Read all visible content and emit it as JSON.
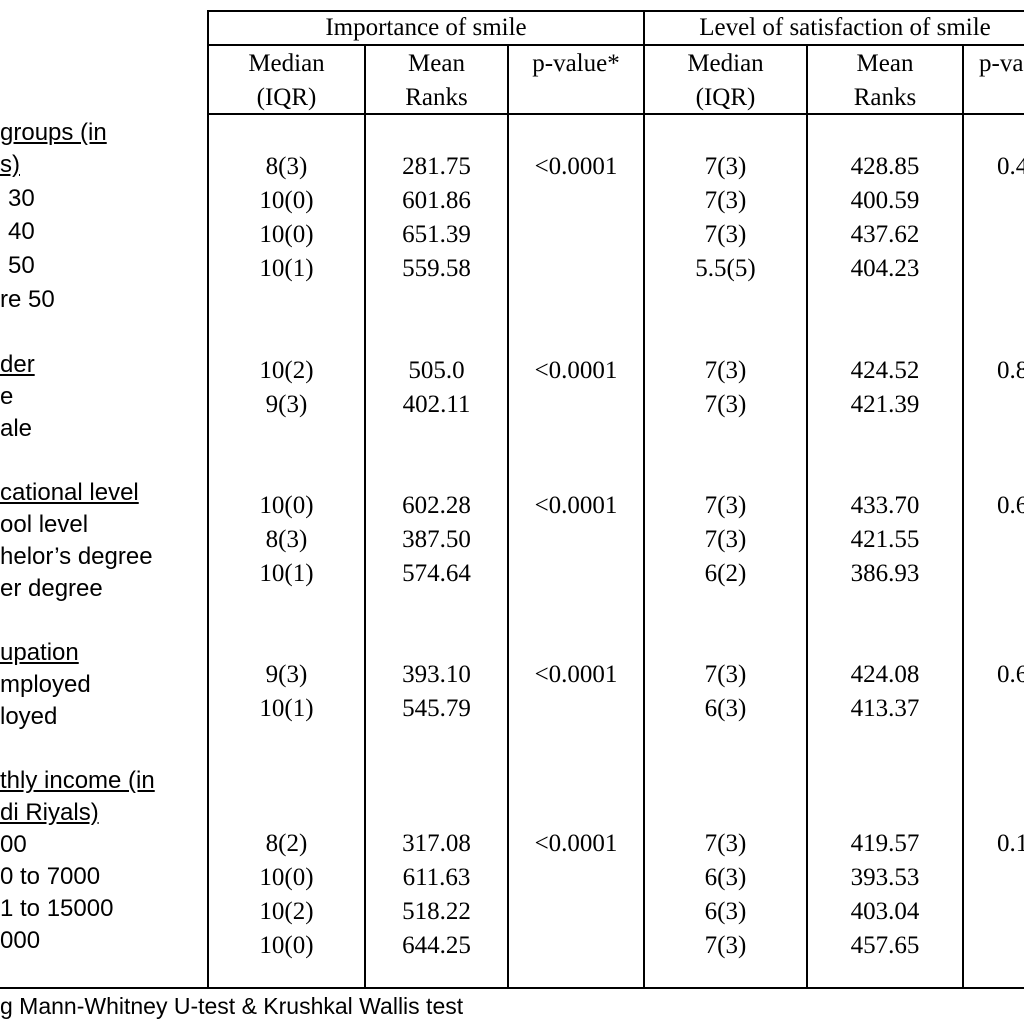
{
  "header": {
    "group1_title": "Importance of smile",
    "group2_title": "Level of satisfaction of smile",
    "col_median_l1": "Median",
    "col_median_l2": "(IQR)",
    "col_mean_l1": "Mean",
    "col_mean_l2": "Ranks",
    "col_p1": "p-value*",
    "col_p2": "p-va"
  },
  "sections": [
    {
      "title_lines": [
        "groups (in",
        "s)"
      ],
      "rows": [
        {
          "label": "30",
          "imp_median": "8(3)",
          "imp_mean": "281.75",
          "imp_p": "<0.0001",
          "sat_median": "7(3)",
          "sat_mean": "428.85",
          "sat_p": "0.4"
        },
        {
          "label": "40",
          "imp_median": "10(0)",
          "imp_mean": "601.86",
          "imp_p": "",
          "sat_median": "7(3)",
          "sat_mean": "400.59",
          "sat_p": ""
        },
        {
          "label": "50",
          "imp_median": "10(0)",
          "imp_mean": "651.39",
          "imp_p": "",
          "sat_median": "7(3)",
          "sat_mean": "437.62",
          "sat_p": ""
        },
        {
          "label": "re 50",
          "imp_median": "10(1)",
          "imp_mean": "559.58",
          "imp_p": "",
          "sat_median": "5.5(5)",
          "sat_mean": "404.23",
          "sat_p": ""
        }
      ]
    },
    {
      "title_lines": [
        "der"
      ],
      "rows": [
        {
          "label": "e",
          "imp_median": "10(2)",
          "imp_mean": "505.0",
          "imp_p": "<0.0001",
          "sat_median": "7(3)",
          "sat_mean": "424.52",
          "sat_p": "0.8"
        },
        {
          "label": "ale",
          "imp_median": "9(3)",
          "imp_mean": "402.11",
          "imp_p": "",
          "sat_median": "7(3)",
          "sat_mean": "421.39",
          "sat_p": ""
        }
      ]
    },
    {
      "title_lines": [
        "cational level"
      ],
      "rows": [
        {
          "label": "ool level",
          "imp_median": "10(0)",
          "imp_mean": "602.28",
          "imp_p": "<0.0001",
          "sat_median": "7(3)",
          "sat_mean": "433.70",
          "sat_p": "0.6"
        },
        {
          "label": "helor’s degree",
          "imp_median": "8(3)",
          "imp_mean": "387.50",
          "imp_p": "",
          "sat_median": "7(3)",
          "sat_mean": "421.55",
          "sat_p": ""
        },
        {
          "label": "er degree",
          "imp_median": "10(1)",
          "imp_mean": "574.64",
          "imp_p": "",
          "sat_median": "6(2)",
          "sat_mean": "386.93",
          "sat_p": ""
        }
      ]
    },
    {
      "title_lines": [
        "upation"
      ],
      "rows": [
        {
          "label": "mployed",
          "imp_median": "9(3)",
          "imp_mean": "393.10",
          "imp_p": "<0.0001",
          "sat_median": "7(3)",
          "sat_mean": "424.08",
          "sat_p": "0.6"
        },
        {
          "label": "loyed",
          "imp_median": "10(1)",
          "imp_mean": "545.79",
          "imp_p": "",
          "sat_median": "6(3)",
          "sat_mean": "413.37",
          "sat_p": ""
        }
      ]
    },
    {
      "title_lines": [
        "thly income (in",
        "di Riyals)"
      ],
      "rows": [
        {
          "label": "00",
          "imp_median": "8(2)",
          "imp_mean": "317.08",
          "imp_p": "<0.0001",
          "sat_median": "7(3)",
          "sat_mean": "419.57",
          "sat_p": "0.1"
        },
        {
          "label": "0 to 7000",
          "imp_median": "10(0)",
          "imp_mean": "611.63",
          "imp_p": "",
          "sat_median": "6(3)",
          "sat_mean": "393.53",
          "sat_p": ""
        },
        {
          "label": "1 to 15000",
          "imp_median": "10(2)",
          "imp_mean": "518.22",
          "imp_p": "",
          "sat_median": "6(3)",
          "sat_mean": "403.04",
          "sat_p": ""
        },
        {
          "label": "000",
          "imp_median": "10(0)",
          "imp_mean": "644.25",
          "imp_p": "",
          "sat_median": "7(3)",
          "sat_mean": "457.65",
          "sat_p": ""
        }
      ]
    }
  ],
  "footer": "g Mann-Whitney U-test & Krushkal Wallis test"
}
